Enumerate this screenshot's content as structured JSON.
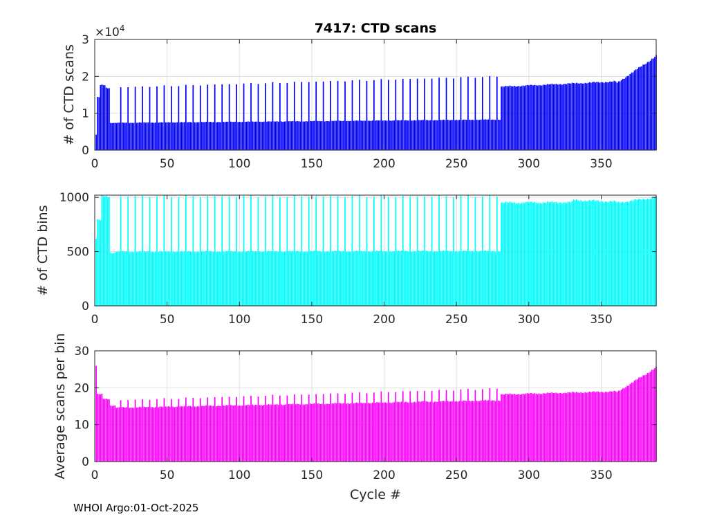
{
  "chart_data": [
    {
      "type": "bar",
      "title": "7417: CTD scans",
      "ylabel": "# of CTD scans",
      "xlabel": "",
      "xlim": [
        0,
        388
      ],
      "ylim": [
        0,
        3
      ],
      "y_multiplier": "×10",
      "y_multiplier_exp": "4",
      "xticks": [
        "0",
        "50",
        "100",
        "150",
        "200",
        "250",
        "300",
        "350"
      ],
      "xtick_values": [
        0,
        50,
        100,
        150,
        200,
        250,
        300,
        350
      ],
      "yticks": [
        "0",
        "1",
        "2",
        "3"
      ],
      "ytick_values": [
        0,
        1,
        2,
        3
      ],
      "color": "#0000ff",
      "series_description": "Scans per cycle (x10^4)",
      "segments": [
        {
          "from": 1,
          "to": 1,
          "base": 0.42,
          "spike": 0
        },
        {
          "from": 2,
          "to": 3,
          "base": 1.43,
          "spike": 0
        },
        {
          "from": 4,
          "to": 7,
          "base": 1.76,
          "spike": 0
        },
        {
          "from": 8,
          "to": 10,
          "base": 1.69,
          "spike": 0
        },
        {
          "from": 11,
          "to": 14,
          "base": 0.74,
          "spike": 0
        },
        {
          "from": 15,
          "to": 280,
          "base": 0.74,
          "base_end": 0.83,
          "spike": 1.7,
          "spike_end": 2.0,
          "spike_every": 5
        },
        {
          "from": 281,
          "to": 360,
          "base": 1.72,
          "base_end": 1.86,
          "spike": 0
        },
        {
          "from": 361,
          "to": 388,
          "base": 1.82,
          "base_end": 2.55,
          "spike": 0
        }
      ]
    },
    {
      "type": "bar",
      "title": "",
      "ylabel": "# of CTD bins",
      "xlabel": "",
      "xlim": [
        0,
        388
      ],
      "ylim": [
        0,
        1020
      ],
      "xticks": [
        "0",
        "50",
        "100",
        "150",
        "200",
        "250",
        "300",
        "350"
      ],
      "xtick_values": [
        0,
        50,
        100,
        150,
        200,
        250,
        300,
        350
      ],
      "yticks": [
        "0",
        "500",
        "1000"
      ],
      "ytick_values": [
        0,
        500,
        1000
      ],
      "color": "#00ffff",
      "segments": [
        {
          "from": 1,
          "to": 1,
          "base": 620,
          "spike": 0
        },
        {
          "from": 2,
          "to": 4,
          "base": 790,
          "spike": 0
        },
        {
          "from": 5,
          "to": 10,
          "base": 1010,
          "spike": 0
        },
        {
          "from": 11,
          "to": 14,
          "base": 490,
          "spike": 0
        },
        {
          "from": 15,
          "to": 280,
          "base": 500,
          "base_end": 505,
          "spike": 1010,
          "spike_end": 1010,
          "spike_every": 5
        },
        {
          "from": 281,
          "to": 330,
          "base": 950,
          "base_end": 955,
          "spike": 0
        },
        {
          "from": 331,
          "to": 360,
          "base": 975,
          "base_end": 960,
          "spike": 0
        },
        {
          "from": 361,
          "to": 388,
          "base": 950,
          "base_end": 1000,
          "spike": 0
        }
      ]
    },
    {
      "type": "bar",
      "title": "",
      "ylabel": "Average scans per bin",
      "xlabel": "Cycle #",
      "xlim": [
        0,
        388
      ],
      "ylim": [
        0,
        30
      ],
      "xticks": [
        "0",
        "50",
        "100",
        "150",
        "200",
        "250",
        "300",
        "350"
      ],
      "xtick_values": [
        0,
        50,
        100,
        150,
        200,
        250,
        300,
        350
      ],
      "yticks": [
        "0",
        "10",
        "20",
        "30"
      ],
      "ytick_values": [
        0,
        10,
        20,
        30
      ],
      "color": "#ff00ff",
      "segments": [
        {
          "from": 1,
          "to": 1,
          "base": 26,
          "spike": 0
        },
        {
          "from": 2,
          "to": 5,
          "base": 18.2,
          "spike": 0
        },
        {
          "from": 6,
          "to": 10,
          "base": 17.0,
          "spike": 0
        },
        {
          "from": 11,
          "to": 14,
          "base": 15.2,
          "spike": 0
        },
        {
          "from": 15,
          "to": 280,
          "base": 14.6,
          "base_end": 16.6,
          "spike": 16.6,
          "spike_end": 19.8,
          "spike_every": 5
        },
        {
          "from": 281,
          "to": 360,
          "base": 18.2,
          "base_end": 19.0,
          "spike": 0
        },
        {
          "from": 361,
          "to": 388,
          "base": 18.8,
          "base_end": 25.5,
          "spike": 0
        }
      ]
    }
  ],
  "footer": "WHOI Argo:01-Oct-2025"
}
